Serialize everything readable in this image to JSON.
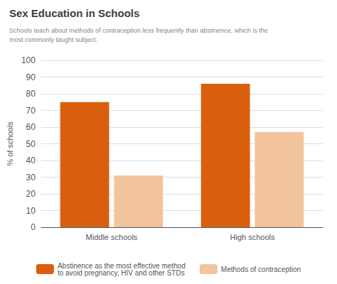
{
  "chart_data": {
    "type": "bar",
    "title": "Sex Education in Schools",
    "subtitle": "Schools teach about methods of contraception less frequently than abstinence, which is the\nmost commonly taught subject.",
    "ylabel": "% of schools",
    "categories": [
      "Middle schools",
      "High schools"
    ],
    "series": [
      {
        "name": "Abstinence as the most effective method\nto avoid pregnancy, HIV and other STDs",
        "color": "#d95f0e",
        "values": [
          75,
          86
        ]
      },
      {
        "name": "Methods of contraception",
        "color": "#f2c49e",
        "values": [
          31,
          57
        ]
      }
    ],
    "ylim": [
      0,
      100
    ],
    "yticks": [
      0,
      10,
      20,
      30,
      40,
      50,
      60,
      70,
      80,
      90,
      100
    ],
    "grid": true,
    "legend": "bottom"
  }
}
